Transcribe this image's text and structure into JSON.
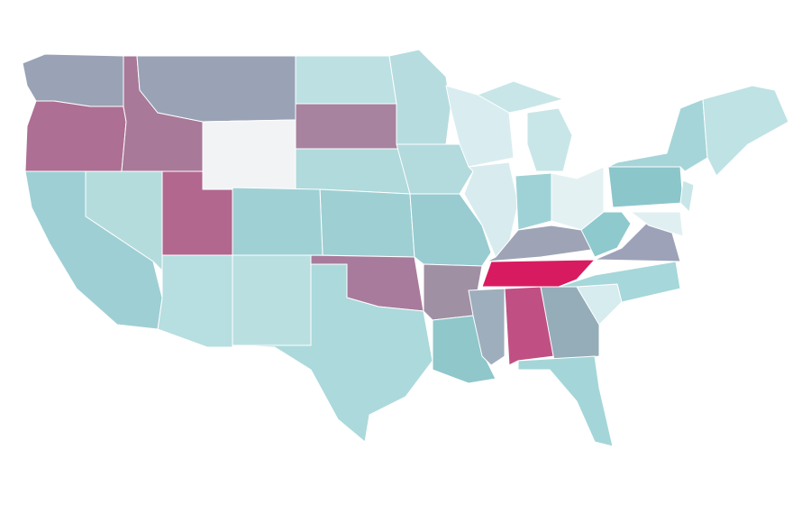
{
  "map": {
    "regions": [
      {
        "color": "#9aa3b5"
      },
      {
        "color": "#ad6f93"
      },
      {
        "color": "#a87998"
      },
      {
        "color": "#9aa3b5"
      },
      {
        "color": "#f2f3f5"
      },
      {
        "color": "#bde0e3"
      },
      {
        "color": "#a7839f"
      },
      {
        "color": "#b0dadc"
      },
      {
        "color": "#9ecfd3"
      },
      {
        "color": "#a87b9c"
      },
      {
        "color": "#acd9db"
      },
      {
        "color": "#b9dfe1"
      },
      {
        "color": "#b7dee0"
      },
      {
        "color": "#9fd0d4"
      },
      {
        "color": "#b1678e"
      },
      {
        "color": "#b5dcdd"
      },
      {
        "color": "#9ecfd4"
      },
      {
        "color": "#b6dcdf"
      },
      {
        "color": "#b3dadd"
      },
      {
        "color": "#98ccd1"
      },
      {
        "color": "#a090a4"
      },
      {
        "color": "#8fc7cb"
      },
      {
        "color": "#d9edf0"
      },
      {
        "color": "#d8ecef"
      },
      {
        "color": "#c8e6e8"
      },
      {
        "color": "#c8e6e8"
      },
      {
        "color": "#9fd2d6"
      },
      {
        "color": "#e3f1f3"
      },
      {
        "color": "#9ea4b6"
      },
      {
        "color": "#d81b60"
      },
      {
        "color": "#9eaebc"
      },
      {
        "color": "#c05084"
      },
      {
        "color": "#95adb9"
      },
      {
        "color": "#a4d6d9"
      },
      {
        "color": "#d6ecef"
      },
      {
        "color": "#a6d7da"
      },
      {
        "color": "#9ea2b8"
      },
      {
        "color": "#8ec9cd"
      },
      {
        "color": "#8bc6cb"
      },
      {
        "color": "#a5d5d8"
      },
      {
        "color": "#bfe2e4"
      },
      {
        "color": "#c8e6e8"
      },
      {
        "color": "#e0f0f2"
      }
    ]
  }
}
